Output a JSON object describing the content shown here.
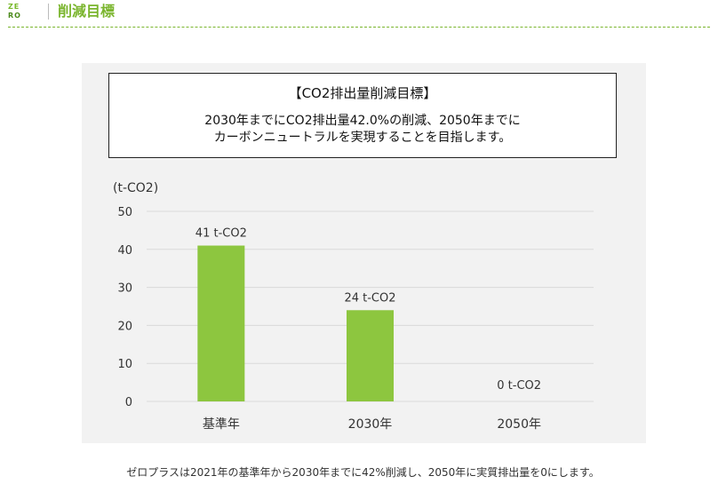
{
  "header": {
    "logo_top": "ZE",
    "logo_bottom": "RO",
    "title": "削減目標"
  },
  "goal_box": {
    "title": "【CO2排出量削減目標】",
    "line1": "2030年までにCO2排出量42.0%の削減、2050年までに",
    "line2": "カーボンニュートラルを実現することを目指します。"
  },
  "chart_data": {
    "type": "bar",
    "ylabel": "(t-CO2)",
    "categories": [
      "基準年",
      "2030年",
      "2050年"
    ],
    "values": [
      41,
      24,
      0
    ],
    "data_labels": [
      "41 t-CO2",
      "24 t-CO2",
      "0 t-CO2"
    ],
    "ylim": [
      0,
      50
    ],
    "yticks": [
      0,
      10,
      20,
      30,
      40,
      50
    ],
    "grid": true,
    "bar_color": "#8dc63f",
    "grid_color": "#d9d9d9"
  },
  "caption": "ゼロプラスは2021年の基準年から2030年までに42%削減し、2050年に実質排出量を0にします。"
}
